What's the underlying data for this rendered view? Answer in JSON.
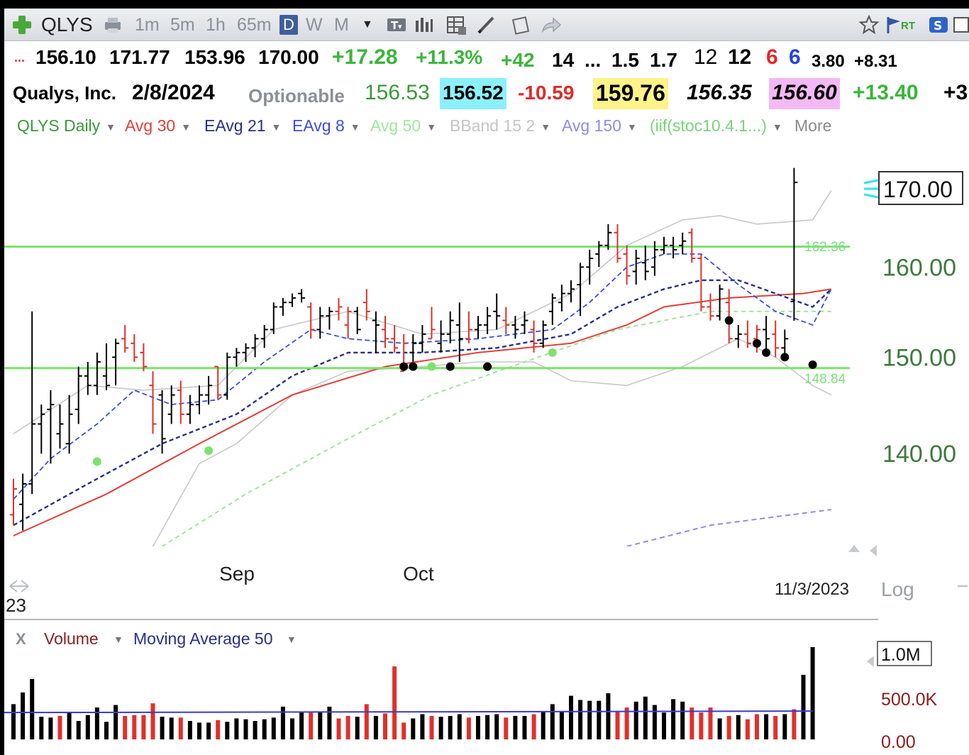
{
  "toolbar": {
    "symbol": "QLYS",
    "intervals": [
      "1m",
      "5m",
      "1h",
      "65m",
      "D",
      "W",
      "M"
    ],
    "rt_label": "RT"
  },
  "quote_row1": {
    "lead": "...",
    "open": "156.10",
    "high": "171.77",
    "low": "153.96",
    "close": "170.00",
    "change": "+17.28",
    "change_pct": "+11.3%",
    "v1": "+42",
    "v2": "14",
    "v3": "...",
    "v4": "1.5",
    "v5": "1.7",
    "v6": "12",
    "v7": "12",
    "v8": "6",
    "v9": "6",
    "v10": "3.80",
    "v11": "+8.31"
  },
  "quote_row2": {
    "company": "Qualys, Inc.",
    "date": "2/8/2024",
    "optionable": "Optionable",
    "p1": "156.53",
    "p2": "156.52",
    "p3": "-10.59",
    "p4": "159.76",
    "p5": "156.35",
    "p6": "156.60",
    "p7": "+13.40",
    "p8": "+3"
  },
  "legend": [
    {
      "label": "QLYS Daily",
      "color": "#3a9a3a"
    },
    {
      "label": "Avg 30",
      "color": "#e0403a"
    },
    {
      "label": "EAvg 21",
      "color": "#26308a"
    },
    {
      "label": "EAvg 8",
      "color": "#3a4ee0"
    },
    {
      "label": "Avg 50",
      "color": "#9ee69a"
    },
    {
      "label": "BBand 15 2",
      "color": "#c4c4c4"
    },
    {
      "label": "Avg 150",
      "color": "#8c8cf0"
    },
    {
      "label": "(iif(stoc10.4.1...)",
      "color": "#7ad47a"
    },
    {
      "label": "More",
      "color": "#8a8a8a"
    }
  ],
  "chart_data": {
    "type": "ohlc",
    "symbol": "QLYS",
    "y_scale": "log",
    "yticks": [
      140,
      150,
      160
    ],
    "ylim": [
      131,
      175
    ],
    "month_labels": [
      {
        "label": "Sep",
        "bar": 21
      },
      {
        "label": "Oct",
        "bar": 41
      }
    ],
    "last_price_label": "170.00",
    "left_date_fragment": "23",
    "right_date_label": "11/3/2023",
    "log_label": "Log",
    "lines_label_left": "162.36",
    "lines_label_right": "148.84",
    "horizontal_lines": [
      162.36,
      148.84
    ],
    "bars": [
      {
        "o": 134.0,
        "h": 137.5,
        "l": 133.0,
        "c": 136.5,
        "up": false
      },
      {
        "o": 135.0,
        "h": 138.0,
        "l": 132.5,
        "c": 137.0,
        "up": true
      },
      {
        "o": 137.0,
        "h": 155.0,
        "l": 136.0,
        "c": 143.0,
        "up": true
      },
      {
        "o": 143.0,
        "h": 145.0,
        "l": 140.0,
        "c": 144.0,
        "up": true
      },
      {
        "o": 144.5,
        "h": 146.5,
        "l": 139.0,
        "c": 145.0,
        "up": true
      },
      {
        "o": 142.0,
        "h": 145.0,
        "l": 140.5,
        "c": 143.0,
        "up": true
      },
      {
        "o": 141.0,
        "h": 146.0,
        "l": 140.0,
        "c": 144.0,
        "up": true
      },
      {
        "o": 144.5,
        "h": 149.0,
        "l": 143.0,
        "c": 148.0,
        "up": true
      },
      {
        "o": 148.0,
        "h": 149.5,
        "l": 146.0,
        "c": 147.0,
        "up": true
      },
      {
        "o": 147.0,
        "h": 150.5,
        "l": 146.0,
        "c": 149.5,
        "up": true
      },
      {
        "o": 148.0,
        "h": 151.5,
        "l": 146.5,
        "c": 147.0,
        "up": true
      },
      {
        "o": 150.0,
        "h": 152.0,
        "l": 147.0,
        "c": 151.5,
        "up": true
      },
      {
        "o": 152.0,
        "h": 153.5,
        "l": 150.5,
        "c": 151.0,
        "up": false
      },
      {
        "o": 151.5,
        "h": 152.5,
        "l": 149.5,
        "c": 150.0,
        "up": false
      },
      {
        "o": 150.5,
        "h": 151.5,
        "l": 148.5,
        "c": 149.0,
        "up": false
      },
      {
        "o": 147.0,
        "h": 148.5,
        "l": 142.0,
        "c": 143.0,
        "up": false
      },
      {
        "o": 146.0,
        "h": 146.5,
        "l": 140.0,
        "c": 141.5,
        "up": true
      },
      {
        "o": 144.0,
        "h": 147.0,
        "l": 143.0,
        "c": 146.0,
        "up": true
      },
      {
        "o": 146.5,
        "h": 147.5,
        "l": 143.0,
        "c": 144.0,
        "up": false
      },
      {
        "o": 144.0,
        "h": 146.0,
        "l": 143.0,
        "c": 145.0,
        "up": true
      },
      {
        "o": 145.0,
        "h": 147.0,
        "l": 144.0,
        "c": 146.0,
        "up": true
      },
      {
        "o": 146.0,
        "h": 148.0,
        "l": 145.0,
        "c": 147.0,
        "up": true
      },
      {
        "o": 149.0,
        "h": 149.0,
        "l": 145.5,
        "c": 146.0,
        "up": false
      },
      {
        "o": 146.0,
        "h": 150.5,
        "l": 145.5,
        "c": 150.0,
        "up": true
      },
      {
        "o": 150.0,
        "h": 151.0,
        "l": 149.0,
        "c": 150.5,
        "up": true
      },
      {
        "o": 150.5,
        "h": 151.5,
        "l": 149.5,
        "c": 151.0,
        "up": true
      },
      {
        "o": 151.0,
        "h": 152.5,
        "l": 150.0,
        "c": 152.0,
        "up": true
      },
      {
        "o": 152.0,
        "h": 153.5,
        "l": 151.0,
        "c": 153.0,
        "up": true
      },
      {
        "o": 153.0,
        "h": 156.0,
        "l": 152.5,
        "c": 155.5,
        "up": true
      },
      {
        "o": 155.5,
        "h": 156.5,
        "l": 154.5,
        "c": 156.0,
        "up": true
      },
      {
        "o": 156.0,
        "h": 157.0,
        "l": 155.5,
        "c": 156.5,
        "up": true
      },
      {
        "o": 157.0,
        "h": 157.5,
        "l": 156.0,
        "c": 156.5,
        "up": true
      },
      {
        "o": 155.5,
        "h": 156.0,
        "l": 152.0,
        "c": 153.0,
        "up": false
      },
      {
        "o": 153.0,
        "h": 155.5,
        "l": 152.0,
        "c": 154.5,
        "up": true
      },
      {
        "o": 154.5,
        "h": 155.5,
        "l": 153.0,
        "c": 155.0,
        "up": true
      },
      {
        "o": 155.0,
        "h": 156.5,
        "l": 154.0,
        "c": 155.5,
        "up": false
      },
      {
        "o": 153.5,
        "h": 155.5,
        "l": 152.0,
        "c": 155.0,
        "up": false
      },
      {
        "o": 155.0,
        "h": 155.5,
        "l": 152.5,
        "c": 153.0,
        "up": true
      },
      {
        "o": 156.0,
        "h": 157.5,
        "l": 154.0,
        "c": 155.0,
        "up": false
      },
      {
        "o": 154.0,
        "h": 155.0,
        "l": 150.5,
        "c": 153.5,
        "up": true
      },
      {
        "o": 153.0,
        "h": 154.5,
        "l": 151.0,
        "c": 152.0,
        "up": false
      },
      {
        "o": 152.0,
        "h": 153.5,
        "l": 150.5,
        "c": 151.0,
        "up": false
      },
      {
        "o": 148.5,
        "h": 152.5,
        "l": 148.5,
        "c": 151.5,
        "up": false
      },
      {
        "o": 150.5,
        "h": 152.5,
        "l": 149.5,
        "c": 151.5,
        "up": true
      },
      {
        "o": 151.5,
        "h": 153.5,
        "l": 150.5,
        "c": 152.5,
        "up": true
      },
      {
        "o": 152.0,
        "h": 155.5,
        "l": 152.0,
        "c": 153.0,
        "up": false
      },
      {
        "o": 151.5,
        "h": 154.0,
        "l": 150.5,
        "c": 152.5,
        "up": true
      },
      {
        "o": 152.5,
        "h": 155.0,
        "l": 151.5,
        "c": 154.0,
        "up": true
      },
      {
        "o": 153.5,
        "h": 156.0,
        "l": 149.5,
        "c": 152.0,
        "up": true
      },
      {
        "o": 152.0,
        "h": 155.0,
        "l": 151.5,
        "c": 153.0,
        "up": false
      },
      {
        "o": 153.0,
        "h": 154.5,
        "l": 152.0,
        "c": 153.5,
        "up": true
      },
      {
        "o": 153.5,
        "h": 155.5,
        "l": 152.5,
        "c": 154.5,
        "up": true
      },
      {
        "o": 155.0,
        "h": 157.0,
        "l": 153.0,
        "c": 154.5,
        "up": true
      },
      {
        "o": 154.0,
        "h": 155.5,
        "l": 152.5,
        "c": 153.5,
        "up": false
      },
      {
        "o": 153.5,
        "h": 154.5,
        "l": 152.0,
        "c": 153.0,
        "up": true
      },
      {
        "o": 153.5,
        "h": 155.0,
        "l": 152.5,
        "c": 154.0,
        "up": true
      },
      {
        "o": 153.0,
        "h": 154.0,
        "l": 150.5,
        "c": 151.5,
        "up": false
      },
      {
        "o": 151.5,
        "h": 154.0,
        "l": 151.0,
        "c": 153.5,
        "up": true
      },
      {
        "o": 155.0,
        "h": 157.0,
        "l": 153.5,
        "c": 156.5,
        "up": true
      },
      {
        "o": 156.0,
        "h": 158.0,
        "l": 155.0,
        "c": 157.0,
        "up": true
      },
      {
        "o": 157.0,
        "h": 158.5,
        "l": 156.0,
        "c": 157.5,
        "up": true
      },
      {
        "o": 158.0,
        "h": 160.5,
        "l": 154.5,
        "c": 160.0,
        "up": true
      },
      {
        "o": 160.0,
        "h": 162.0,
        "l": 158.0,
        "c": 161.0,
        "up": true
      },
      {
        "o": 161.5,
        "h": 163.0,
        "l": 160.0,
        "c": 162.5,
        "up": true
      },
      {
        "o": 162.5,
        "h": 165.0,
        "l": 162.0,
        "c": 164.0,
        "up": true
      },
      {
        "o": 164.0,
        "h": 165.0,
        "l": 160.5,
        "c": 161.0,
        "up": false
      },
      {
        "o": 161.5,
        "h": 162.5,
        "l": 158.0,
        "c": 159.0,
        "up": false
      },
      {
        "o": 159.5,
        "h": 162.0,
        "l": 158.0,
        "c": 161.0,
        "up": true
      },
      {
        "o": 160.5,
        "h": 162.5,
        "l": 158.5,
        "c": 159.5,
        "up": true
      },
      {
        "o": 160.0,
        "h": 163.0,
        "l": 159.0,
        "c": 162.0,
        "up": true
      },
      {
        "o": 162.0,
        "h": 163.5,
        "l": 161.5,
        "c": 162.5,
        "up": true
      },
      {
        "o": 162.5,
        "h": 163.5,
        "l": 161.0,
        "c": 162.0,
        "up": true
      },
      {
        "o": 162.5,
        "h": 164.0,
        "l": 161.5,
        "c": 163.0,
        "up": true
      },
      {
        "o": 164.0,
        "h": 164.5,
        "l": 160.5,
        "c": 161.0,
        "up": false
      },
      {
        "o": 161.0,
        "h": 161.5,
        "l": 155.0,
        "c": 155.5,
        "up": false
      },
      {
        "o": 155.5,
        "h": 157.0,
        "l": 154.0,
        "c": 154.5,
        "up": false
      },
      {
        "o": 154.5,
        "h": 158.0,
        "l": 154.0,
        "c": 157.5,
        "up": true
      },
      {
        "o": 156.0,
        "h": 157.5,
        "l": 151.5,
        "c": 152.0,
        "up": false
      },
      {
        "o": 152.0,
        "h": 153.5,
        "l": 151.0,
        "c": 152.5,
        "up": true
      },
      {
        "o": 152.5,
        "h": 154.0,
        "l": 151.0,
        "c": 151.5,
        "up": false
      },
      {
        "o": 152.0,
        "h": 153.5,
        "l": 150.5,
        "c": 153.0,
        "up": false
      },
      {
        "o": 153.0,
        "h": 154.5,
        "l": 150.5,
        "c": 152.0,
        "up": true
      },
      {
        "o": 152.5,
        "h": 154.0,
        "l": 150.0,
        "c": 151.0,
        "up": false
      },
      {
        "o": 151.0,
        "h": 153.0,
        "l": 150.0,
        "c": 152.0,
        "up": true
      },
      {
        "o": 156.1,
        "h": 171.77,
        "l": 153.96,
        "c": 170.0,
        "up": true
      }
    ],
    "avg30": [
      [
        0,
        132.0
      ],
      [
        10,
        136.0
      ],
      [
        20,
        141.0
      ],
      [
        30,
        146.0
      ],
      [
        40,
        149.0
      ],
      [
        50,
        150.5
      ],
      [
        60,
        151.5
      ],
      [
        66,
        153.5
      ],
      [
        70,
        155.5
      ],
      [
        77,
        156.5
      ],
      [
        85,
        157.0
      ],
      [
        88,
        157.5
      ]
    ],
    "eavg21": [
      [
        0,
        133.0
      ],
      [
        8,
        137.0
      ],
      [
        16,
        141.0
      ],
      [
        24,
        144.0
      ],
      [
        30,
        148.0
      ],
      [
        36,
        150.5
      ],
      [
        44,
        150.5
      ],
      [
        52,
        151.0
      ],
      [
        60,
        152.5
      ],
      [
        65,
        155.5
      ],
      [
        70,
        157.5
      ],
      [
        74,
        158.5
      ],
      [
        78,
        158.5
      ],
      [
        82,
        157.0
      ],
      [
        86,
        155.5
      ],
      [
        88,
        157.5
      ]
    ],
    "eavg8": [
      [
        0,
        135.5
      ],
      [
        4,
        139.5
      ],
      [
        9,
        143.0
      ],
      [
        13,
        146.5
      ],
      [
        17,
        145.0
      ],
      [
        22,
        145.5
      ],
      [
        27,
        149.5
      ],
      [
        32,
        153.0
      ],
      [
        36,
        152.0
      ],
      [
        42,
        151.5
      ],
      [
        50,
        152.0
      ],
      [
        58,
        153.0
      ],
      [
        62,
        156.0
      ],
      [
        66,
        160.0
      ],
      [
        70,
        161.5
      ],
      [
        74,
        161.5
      ],
      [
        78,
        158.0
      ],
      [
        82,
        155.0
      ],
      [
        86,
        153.5
      ],
      [
        88,
        157.5
      ]
    ],
    "avg50": [
      [
        16,
        131.0
      ],
      [
        25,
        136.0
      ],
      [
        35,
        141.0
      ],
      [
        45,
        146.0
      ],
      [
        55,
        149.5
      ],
      [
        65,
        153.0
      ],
      [
        75,
        155.0
      ],
      [
        82,
        155.0
      ],
      [
        88,
        155.0
      ]
    ],
    "avg150": [
      [
        66,
        131.0
      ],
      [
        75,
        133.0
      ],
      [
        88,
        134.5
      ]
    ],
    "bb_upper": [
      [
        0,
        142.0
      ],
      [
        8,
        147.0
      ],
      [
        14,
        146.5
      ],
      [
        22,
        147.0
      ],
      [
        28,
        153.0
      ],
      [
        36,
        155.0
      ],
      [
        44,
        152.5
      ],
      [
        52,
        153.0
      ],
      [
        60,
        157.0
      ],
      [
        66,
        162.5
      ],
      [
        72,
        165.5
      ],
      [
        76,
        166.0
      ],
      [
        80,
        165.0
      ],
      [
        86,
        165.5
      ],
      [
        88,
        169.0
      ]
    ],
    "bb_lower": [
      [
        15,
        131.0
      ],
      [
        20,
        139.0
      ],
      [
        24,
        141.0
      ],
      [
        30,
        146.0
      ],
      [
        36,
        148.5
      ],
      [
        44,
        149.0
      ],
      [
        50,
        149.5
      ],
      [
        56,
        149.5
      ],
      [
        60,
        147.5
      ],
      [
        66,
        147.0
      ],
      [
        72,
        149.0
      ],
      [
        78,
        152.0
      ],
      [
        82,
        150.0
      ],
      [
        86,
        147.0
      ],
      [
        88,
        146.0
      ]
    ],
    "green_dots": [
      [
        9,
        139.2
      ],
      [
        21,
        140.3
      ],
      [
        45,
        149.0
      ],
      [
        58,
        150.5
      ]
    ],
    "black_dots": [
      [
        42,
        149.0
      ],
      [
        43,
        149.0
      ],
      [
        47,
        149.0
      ],
      [
        51,
        149.0
      ],
      [
        77,
        154.0
      ],
      [
        80,
        151.5
      ],
      [
        81,
        150.5
      ],
      [
        83,
        150.0
      ],
      [
        86,
        149.2
      ]
    ]
  },
  "volume_panel": {
    "x_label": "X",
    "volume_label": "Volume",
    "ma_label": "Moving Average 50",
    "ticks": [
      "1.0M",
      "500.0K",
      "0.00"
    ],
    "ma_value": 320000,
    "max": 1100000,
    "values": [
      420000,
      560000,
      720000,
      270000,
      260000,
      280000,
      330000,
      220000,
      290000,
      380000,
      210000,
      410000,
      280000,
      290000,
      290000,
      430000,
      270000,
      260000,
      260000,
      220000,
      200000,
      200000,
      230000,
      210000,
      250000,
      240000,
      220000,
      240000,
      260000,
      390000,
      250000,
      320000,
      330000,
      330000,
      390000,
      250000,
      280000,
      270000,
      420000,
      280000,
      310000,
      870000,
      200000,
      250000,
      300000,
      280000,
      270000,
      280000,
      300000,
      260000,
      280000,
      290000,
      300000,
      260000,
      280000,
      280000,
      300000,
      330000,
      420000,
      330000,
      520000,
      470000,
      460000,
      460000,
      550000,
      340000,
      380000,
      450000,
      510000,
      410000,
      320000,
      480000,
      450000,
      380000,
      320000,
      380000,
      250000,
      280000,
      290000,
      240000,
      300000,
      300000,
      280000,
      300000,
      360000,
      770000,
      1100000
    ],
    "down_days": [
      false,
      false,
      false,
      false,
      false,
      true,
      false,
      false,
      false,
      false,
      false,
      false,
      true,
      true,
      true,
      true,
      false,
      false,
      true,
      false,
      false,
      false,
      true,
      false,
      false,
      false,
      false,
      false,
      false,
      false,
      false,
      false,
      true,
      false,
      false,
      true,
      true,
      false,
      true,
      false,
      true,
      true,
      true,
      false,
      false,
      true,
      false,
      false,
      false,
      true,
      false,
      false,
      false,
      true,
      false,
      false,
      true,
      false,
      false,
      false,
      false,
      false,
      false,
      false,
      false,
      true,
      true,
      false,
      false,
      false,
      false,
      false,
      false,
      true,
      true,
      true,
      false,
      true,
      false,
      true,
      true,
      false,
      true,
      false,
      true,
      false,
      false
    ]
  }
}
